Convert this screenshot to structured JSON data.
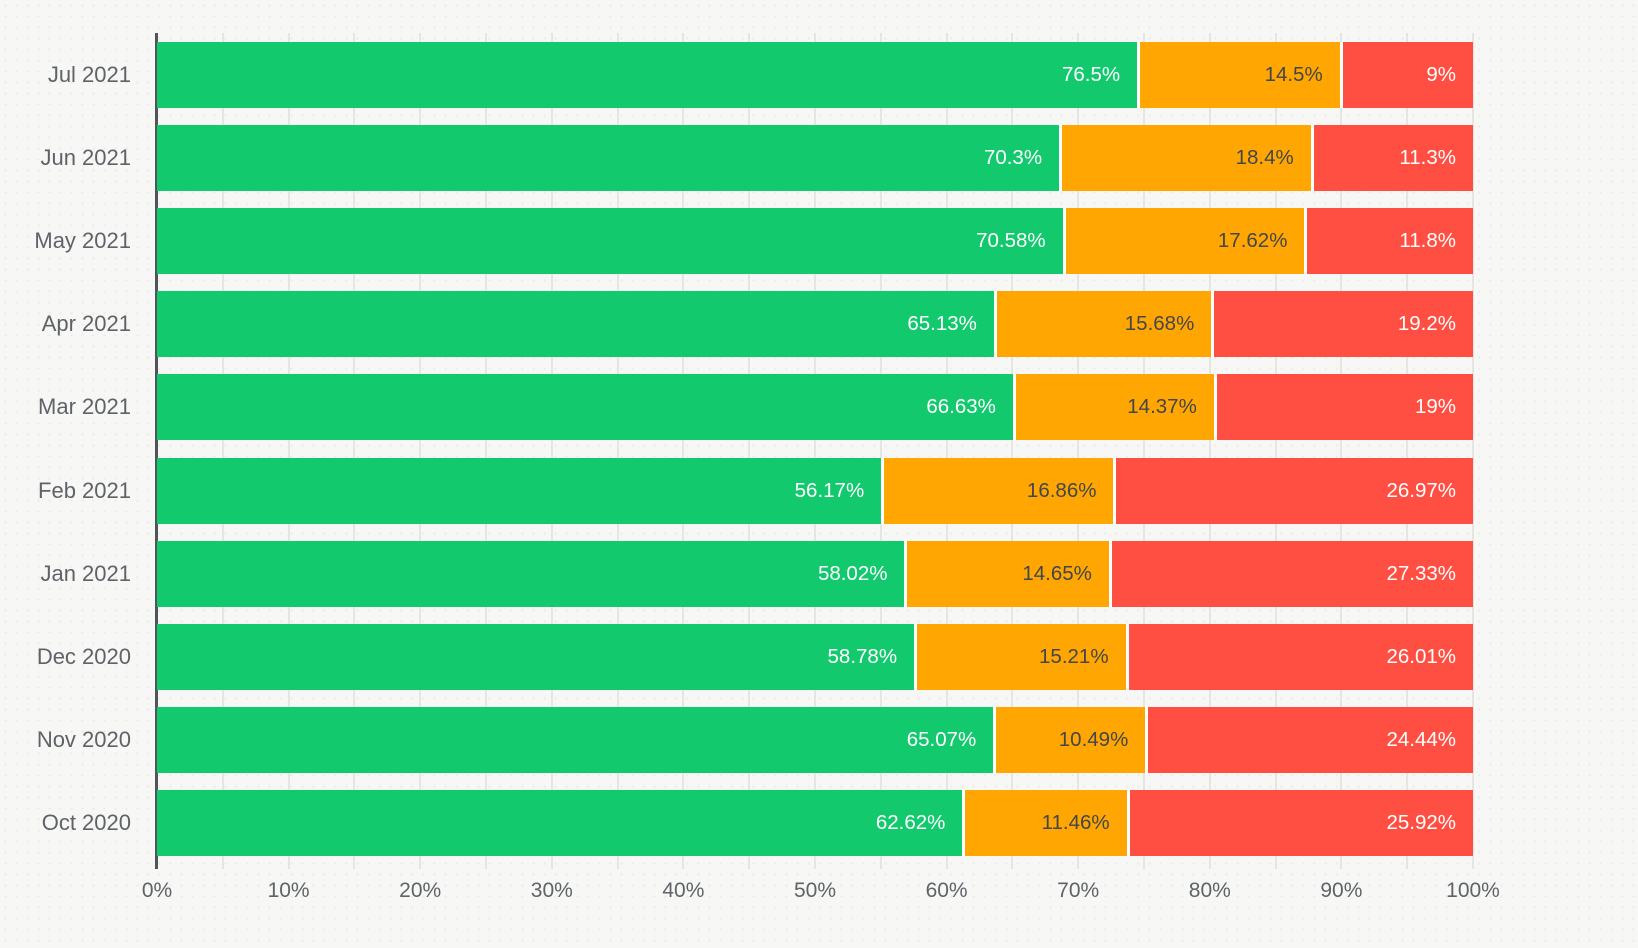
{
  "colors": {
    "background": "#f7f7f5",
    "dot_pattern": "#eaeae7",
    "gridline": "#e5e5e2",
    "axis_line": "#50555c",
    "axis_text": "#5f6368",
    "separator": "#ffffff",
    "series_green": "#12c96e",
    "series_orange": "#ffa602",
    "series_red": "#ff4f43",
    "label_on_green": "#ffffff",
    "label_on_orange": "#43464b",
    "label_on_red": "#ffffff"
  },
  "chart_data": {
    "type": "bar",
    "variant": "stacked-100-percent",
    "orientation": "horizontal",
    "grid": true,
    "legend": "none",
    "title": "",
    "xlabel": "",
    "ylabel": "",
    "categories": [
      "Jul 2021",
      "Jun 2021",
      "May 2021",
      "Apr 2021",
      "Mar 2021",
      "Feb 2021",
      "Jan 2021",
      "Dec 2020",
      "Nov 2020",
      "Oct 2020"
    ],
    "series": [
      {
        "id": "green",
        "color": "#12c96e",
        "label_color": "#ffffff",
        "values": [
          76.5,
          70.3,
          70.58,
          65.13,
          66.63,
          56.17,
          58.02,
          58.78,
          65.07,
          62.62
        ]
      },
      {
        "id": "orange",
        "color": "#ffa602",
        "label_color": "#43464b",
        "values": [
          14.5,
          18.4,
          17.62,
          15.68,
          14.37,
          16.86,
          14.65,
          15.21,
          10.49,
          11.46
        ]
      },
      {
        "id": "red",
        "color": "#ff4f43",
        "label_color": "#ffffff",
        "values": [
          9,
          11.3,
          11.8,
          19.2,
          19,
          26.97,
          27.33,
          26.01,
          24.44,
          25.92
        ]
      }
    ],
    "labels": [
      [
        "76.5%",
        "14.5%",
        "9%"
      ],
      [
        "70.3%",
        "18.4%",
        "11.3%"
      ],
      [
        "70.58%",
        "17.62%",
        "11.8%"
      ],
      [
        "65.13%",
        "15.68%",
        "19.2%"
      ],
      [
        "66.63%",
        "14.37%",
        "19%"
      ],
      [
        "56.17%",
        "16.86%",
        "26.97%"
      ],
      [
        "58.02%",
        "14.65%",
        "27.33%"
      ],
      [
        "58.78%",
        "15.21%",
        "26.01%"
      ],
      [
        "65.07%",
        "10.49%",
        "24.44%"
      ],
      [
        "62.62%",
        "11.46%",
        "25.92%"
      ]
    ],
    "x_axis": {
      "range": [
        0,
        100
      ],
      "tick_labels": [
        "0%",
        "10%",
        "20%",
        "30%",
        "40%",
        "50%",
        "60%",
        "70%",
        "80%",
        "90%",
        "100%"
      ],
      "major_tick_step_pct": 10,
      "minor_gridline_step_pct": 5
    }
  }
}
